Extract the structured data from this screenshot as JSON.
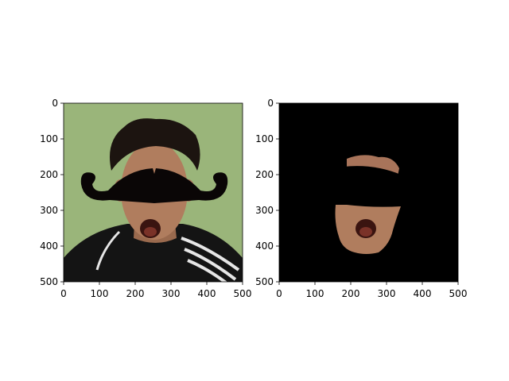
{
  "figure": {
    "background": "#ffffff",
    "panels": [
      {
        "id": "original-with-mustache",
        "content": "photo of a man's face with green background, a black mustache covering the eyes region",
        "colors": {
          "background": "#9ab57a",
          "mustache": "#0a0606",
          "skin": "#b07d5e",
          "hair": "#1c1410",
          "shirt": "#141414",
          "stripe": "#e6e6e6"
        }
      },
      {
        "id": "masked-face",
        "content": "black background with only the segmented face region visible, mustache still covering the eyes",
        "colors": {
          "background": "#000000",
          "skin": "#a8745a"
        }
      }
    ]
  },
  "chart_data": [
    {
      "type": "image",
      "x_ticks": [
        0,
        100,
        200,
        300,
        400,
        500
      ],
      "y_ticks": [
        0,
        100,
        200,
        300,
        400,
        500
      ],
      "xlim": [
        0,
        500
      ],
      "ylim": [
        500,
        0
      ],
      "grid": false
    },
    {
      "type": "image",
      "x_ticks": [
        0,
        100,
        200,
        300,
        400,
        500
      ],
      "y_ticks": [
        0,
        100,
        200,
        300,
        400,
        500
      ],
      "xlim": [
        0,
        500
      ],
      "ylim": [
        500,
        0
      ],
      "grid": false
    }
  ]
}
